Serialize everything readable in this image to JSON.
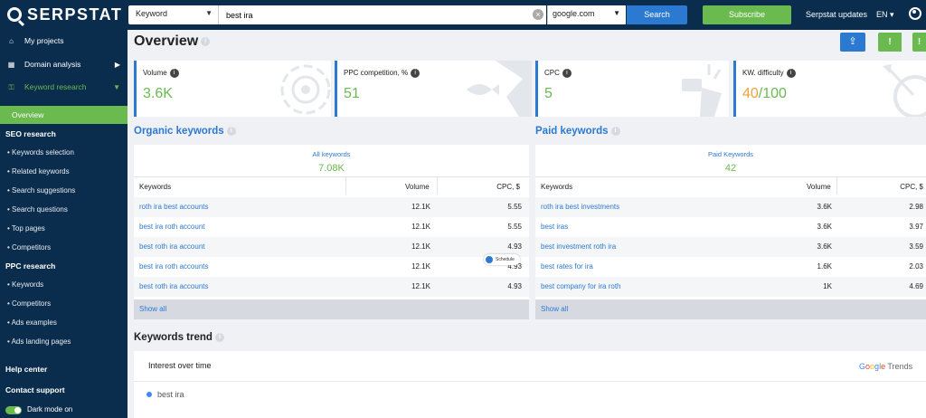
{
  "topbar": {
    "logo": "SERPSTAT",
    "search_type": "Keyword",
    "query": "best ira",
    "database": "google.com",
    "search_label": "Search",
    "subscribe_label": "Subscribe",
    "updates_label": "Serpstat updates",
    "language": "EN"
  },
  "sidebar": {
    "my_projects": "My projects",
    "domain_analysis": "Domain analysis",
    "keyword_research": "Keyword research",
    "overview": "Overview",
    "seo_research": "SEO research",
    "seo_items": [
      "Keywords selection",
      "Related keywords",
      "Search suggestions",
      "Search questions",
      "Top pages",
      "Competitors"
    ],
    "ppc_research": "PPC research",
    "ppc_items": [
      "Keywords",
      "Competitors",
      "Ads examples",
      "Ads landing pages"
    ],
    "help_center": "Help center",
    "contact_support": "Contact support",
    "dark_mode": "Dark mode on"
  },
  "main": {
    "title": "Overview",
    "cards": [
      {
        "label": "Volume",
        "value": "3.6K"
      },
      {
        "label": "PPC competition, %",
        "value": "51"
      },
      {
        "label": "CPC",
        "value": "5"
      },
      {
        "label": "KW. difficulty",
        "value_main": "40",
        "value_suffix": "/100"
      }
    ],
    "organic": {
      "title": "Organic keywords",
      "panel_title": "All keywords",
      "count": "7.08K",
      "columns": [
        "Keywords",
        "Volume",
        "CPC, $"
      ],
      "rows": [
        [
          "roth ira best accounts",
          "12.1K",
          "5.55"
        ],
        [
          "best ira roth account",
          "12.1K",
          "5.55"
        ],
        [
          "best roth ira account",
          "12.1K",
          "4.93"
        ],
        [
          "best ira roth accounts",
          "12.1K",
          "4.93"
        ],
        [
          "best roth ira accounts",
          "12.1K",
          "4.93"
        ]
      ],
      "show_all": "Show all"
    },
    "paid": {
      "title": "Paid keywords",
      "panel_title": "Paid Keywords",
      "count": "42",
      "columns": [
        "Keywords",
        "Volume",
        "CPC, $"
      ],
      "rows": [
        [
          "roth ira best investments",
          "3.6K",
          "2.98"
        ],
        [
          "best iras",
          "3.6K",
          "3.97"
        ],
        [
          "best investment roth ira",
          "3.6K",
          "3.59"
        ],
        [
          "best rates for ira",
          "1.6K",
          "2.03"
        ],
        [
          "best company for ira roth",
          "1K",
          "4.69"
        ]
      ],
      "show_all": "Show all"
    },
    "schedule_label": "Schedule",
    "trend": {
      "title": "Keywords trend",
      "panel_head": "Interest over time",
      "brand_google": [
        "G",
        "o",
        "o",
        "g",
        "l",
        "e"
      ],
      "brand_trends": "Trends",
      "legend": "best ira"
    }
  },
  "colors": {
    "nav_bg": "#0b2d4d",
    "accent_blue": "#2c79d1",
    "accent_green": "#6aba4f",
    "difficulty_orange": "#f0a23a"
  }
}
